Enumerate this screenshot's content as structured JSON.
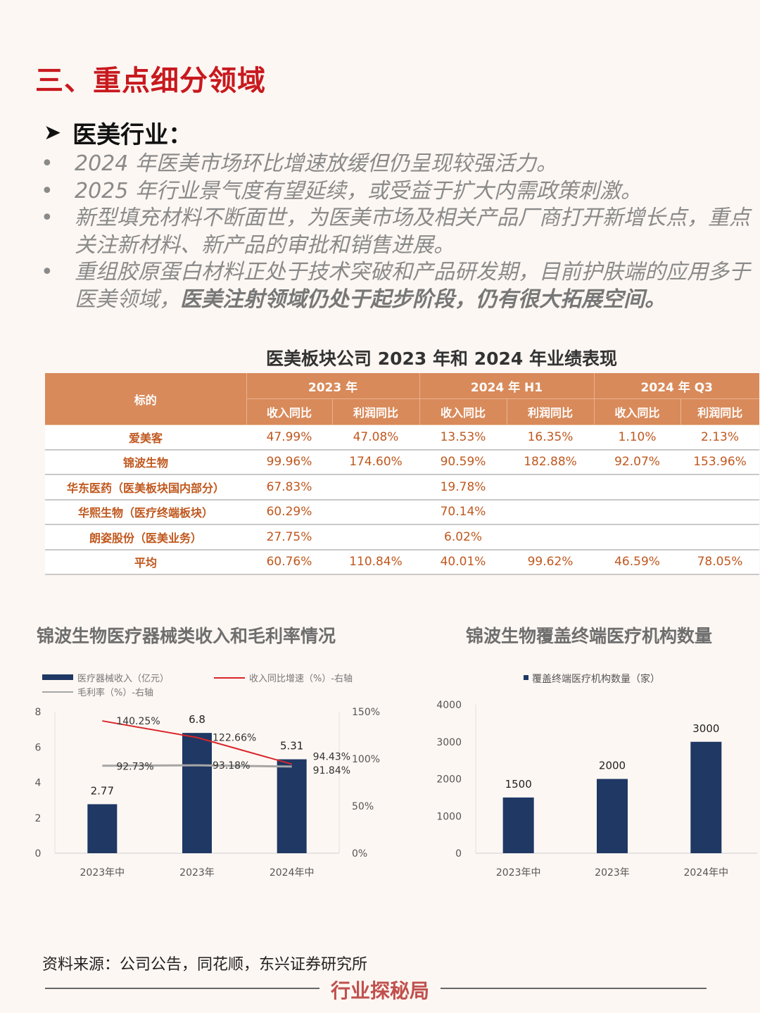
{
  "header": {
    "section_title": "三、重点细分领域",
    "subhead": "医美行业："
  },
  "bullets": [
    {
      "text": "2024 年医美市场环比增速放缓但仍呈现较强活力。"
    },
    {
      "text": "2025 年行业景气度有望延续，或受益于扩大内需政策刺激。"
    },
    {
      "text": "新型填充材料不断面世，为医美市场及相关产品厂商打开新增长点，重点关注新材料、新产品的审批和销售进展。"
    },
    {
      "text": "重组胶原蛋白材料正处于技术突破和产品研发期，目前护肤端的应用多于医美领域，",
      "bold": "医美注射领域仍处于起步阶段，仍有很大拓展空间。"
    }
  ],
  "chart_data": [
    {
      "type": "table",
      "title": "医美板块公司 2023 年和 2024 年业绩表现",
      "row_header": "标的",
      "groups": [
        "2023 年",
        "2024 年 H1",
        "2024 年 Q3"
      ],
      "sub_columns": [
        "收入同比",
        "利润同比",
        "收入同比",
        "利润同比",
        "收入同比",
        "利润同比"
      ],
      "rows": [
        {
          "name": "爱美客",
          "values": [
            "47.99%",
            "47.08%",
            "13.53%",
            "16.35%",
            "1.10%",
            "2.13%"
          ]
        },
        {
          "name": "锦波生物",
          "values": [
            "99.96%",
            "174.60%",
            "90.59%",
            "182.88%",
            "92.07%",
            "153.96%"
          ]
        },
        {
          "name": "华东医药（医美板块国内部分）",
          "values": [
            "67.83%",
            "",
            "19.78%",
            "",
            "",
            ""
          ]
        },
        {
          "name": "华熙生物（医疗终端板块）",
          "values": [
            "60.29%",
            "",
            "70.14%",
            "",
            "",
            ""
          ]
        },
        {
          "name": "朗姿股份（医美业务）",
          "values": [
            "27.75%",
            "",
            "6.02%",
            "",
            "",
            ""
          ]
        },
        {
          "name": "平均",
          "values": [
            "60.76%",
            "110.84%",
            "40.01%",
            "99.62%",
            "46.59%",
            "78.05%"
          ]
        }
      ]
    },
    {
      "type": "bar",
      "title": "锦波生物医疗器械类收入和毛利率情况",
      "categories": [
        "2023年中",
        "2023年",
        "2024年中"
      ],
      "series": [
        {
          "name": "医疗器械收入（亿元）",
          "kind": "bar",
          "axis": "left",
          "values": [
            2.77,
            6.8,
            5.31
          ],
          "labels": [
            "2.77",
            "6.8",
            "5.31"
          ],
          "color": "#1f3864"
        },
        {
          "name": "收入同比增速（%）-右轴",
          "kind": "line",
          "axis": "right",
          "values": [
            140.25,
            122.66,
            94.43
          ],
          "labels": [
            "140.25%",
            "122.66%",
            "94.43%"
          ],
          "color": "#d9262a"
        },
        {
          "name": "毛利率（%）-右轴",
          "kind": "line",
          "axis": "right",
          "values": [
            92.73,
            93.18,
            91.84
          ],
          "labels": [
            "92.73%",
            "93.18%",
            "91.84%"
          ],
          "color": "#a6a6a6"
        }
      ],
      "y_left": {
        "min": 0,
        "max": 8,
        "ticks": [
          "0",
          "2",
          "4",
          "6",
          "8"
        ]
      },
      "y_right": {
        "min": 0,
        "max": 150,
        "ticks": [
          "0%",
          "50%",
          "100%",
          "150%"
        ]
      },
      "grid": false,
      "legend": "top"
    },
    {
      "type": "bar",
      "title": "锦波生物覆盖终端医疗机构数量",
      "categories": [
        "2023年中",
        "2023年",
        "2024年中"
      ],
      "series": [
        {
          "name": "覆盖终端医疗机构数量（家）",
          "values": [
            1500,
            2000,
            3000
          ],
          "labels": [
            "1500",
            "2000",
            "3000"
          ],
          "color": "#1f3864"
        }
      ],
      "y": {
        "min": 0,
        "max": 4000,
        "ticks": [
          "0",
          "1000",
          "2000",
          "3000",
          "4000"
        ]
      },
      "grid": false,
      "legend": "top"
    }
  ],
  "footer": {
    "source": "资料来源：公司公告，同花顺，东兴证券研究所",
    "brand": "行业探秘局"
  }
}
